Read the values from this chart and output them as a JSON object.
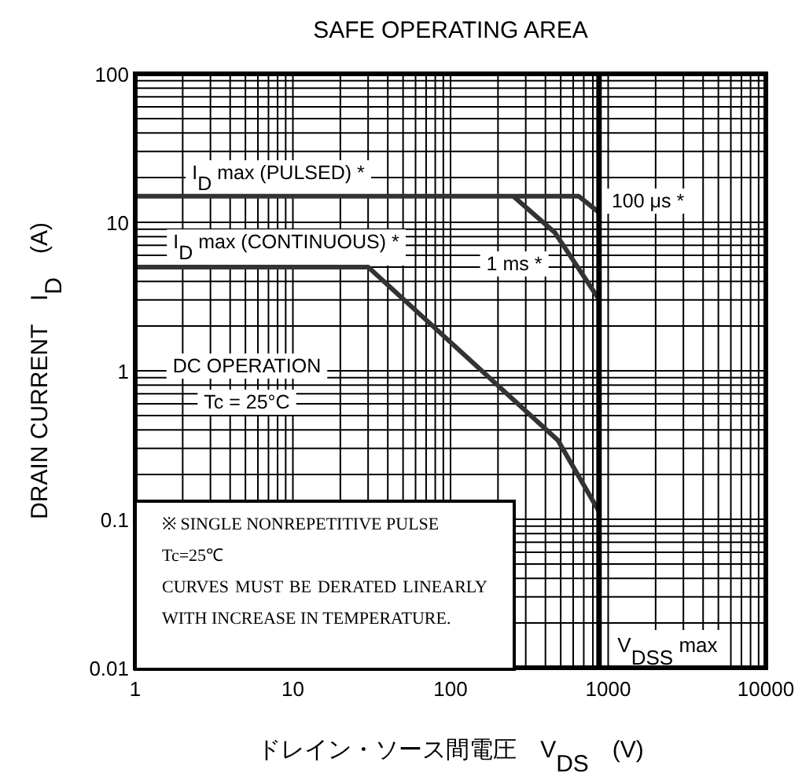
{
  "chart_data": {
    "type": "line",
    "title": "SAFE OPERATING AREA",
    "xlabel": "ドレイン・ソース間電圧　V$_{DS}$　(V)",
    "ylabel": "DRAIN CURRENT　I$_{D}$　(A)",
    "log": "xy",
    "xlim": [
      1,
      10000
    ],
    "ylim": [
      0.01,
      100
    ],
    "xticks": [
      1,
      10,
      100,
      1000,
      10000
    ],
    "yticks": [
      0.01,
      0.1,
      1,
      10,
      100
    ],
    "grid": true,
    "series": [
      {
        "color": "#333333",
        "x": [
          1,
          650,
          870
        ],
        "values": [
          15,
          15,
          11.7
        ]
      },
      {
        "color": "#333333",
        "x": [
          250,
          460,
          870
        ],
        "values": [
          15,
          8.5,
          3.05
        ]
      },
      {
        "color": "#333333",
        "x": [
          1,
          30,
          480,
          870
        ],
        "values": [
          5,
          5,
          0.34,
          0.114
        ]
      }
    ],
    "ref_lines": [
      {
        "axis": "x",
        "value": 870,
        "label": "V$_{DSS}$ max",
        "color": "#000000"
      }
    ],
    "annotations": [
      "I$_{D}$ max (PULSED) *",
      "I$_{D}$ max (CONTINUOUS) *",
      "1 ms *",
      "100 μs *",
      "DC OPERATION",
      "Tc = 25°C",
      "※ SINGLE NONREPETITIVE PULSE",
      "Tc=25℃",
      "CURVES MUST BE DERATED LINEARLY WITH INCREASE IN TEMPERATURE."
    ]
  }
}
